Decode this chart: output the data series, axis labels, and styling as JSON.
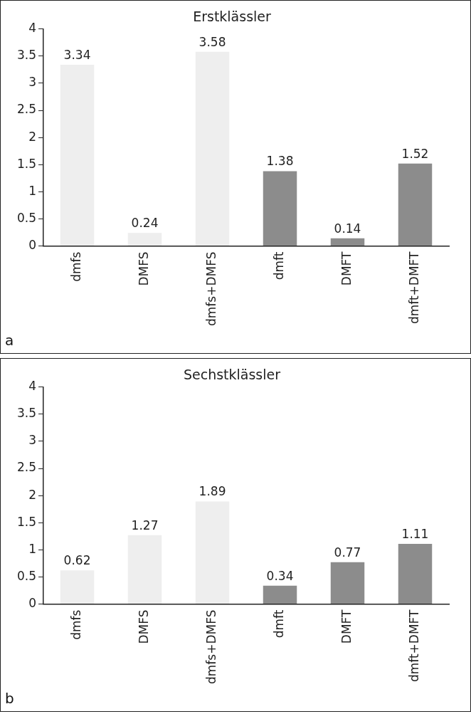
{
  "chart_data": [
    {
      "type": "bar",
      "title": "Erstklässler",
      "categories": [
        "dmfs",
        "DMFS",
        "dmfs+DMFS",
        "dmft",
        "DMFT",
        "dmft+DMFT"
      ],
      "values": [
        3.34,
        0.24,
        3.58,
        1.38,
        0.14,
        1.52
      ],
      "colors": [
        "#eeeeee",
        "#eeeeee",
        "#eeeeee",
        "#8c8c8c",
        "#8c8c8c",
        "#8c8c8c"
      ],
      "ylim": [
        0,
        4
      ],
      "yticks": [
        0,
        0.5,
        1,
        1.5,
        2,
        2.5,
        3,
        3.5,
        4
      ],
      "grid": false,
      "legend": false,
      "data_labels": true,
      "annotations": [
        "a"
      ]
    },
    {
      "type": "bar",
      "title": "Sechstklässler",
      "categories": [
        "dmfs",
        "DMFS",
        "dmfs+DMFS",
        "dmft",
        "DMFT",
        "dmft+DMFT"
      ],
      "values": [
        0.62,
        1.27,
        1.89,
        0.34,
        0.77,
        1.11
      ],
      "colors": [
        "#eeeeee",
        "#eeeeee",
        "#eeeeee",
        "#8c8c8c",
        "#8c8c8c",
        "#8c8c8c"
      ],
      "ylim": [
        0,
        4
      ],
      "yticks": [
        0,
        0.5,
        1,
        1.5,
        2,
        2.5,
        3,
        3.5,
        4
      ],
      "grid": false,
      "legend": false,
      "data_labels": true,
      "annotations": [
        "b"
      ]
    }
  ]
}
